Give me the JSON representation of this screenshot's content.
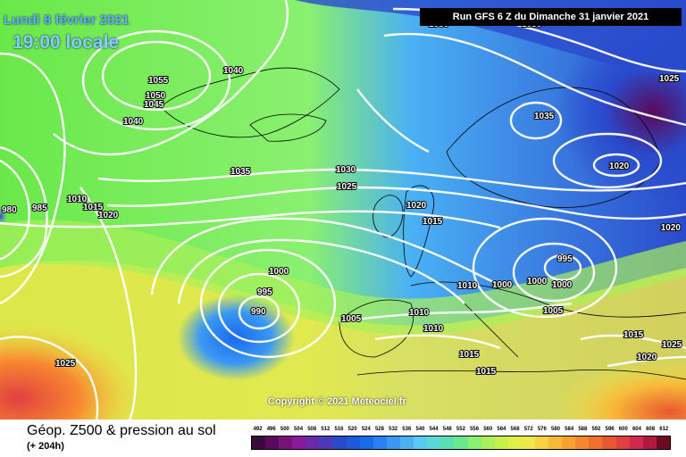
{
  "map": {
    "date_label": "Lundi 8 février 2021",
    "time_label": "19:00 locale",
    "run_label": "Run GFS 6 Z du Dimanche 31 janvier 2021",
    "copyright": "Copyright © 2021 Meteociel.fr",
    "title": "Géop. Z500 & pression au sol",
    "subtitle": "(+ 204h)",
    "isobar_labels": [
      {
        "text": "1055"
      },
      {
        "text": "1050"
      },
      {
        "text": "1045"
      },
      {
        "text": "1040"
      },
      {
        "text": "1040"
      },
      {
        "text": "1035"
      },
      {
        "text": "1030"
      },
      {
        "text": "1025"
      },
      {
        "text": "1020"
      },
      {
        "text": "1015"
      },
      {
        "text": "1035"
      },
      {
        "text": "1020"
      },
      {
        "text": "1025"
      },
      {
        "text": "1020"
      },
      {
        "text": "995"
      },
      {
        "text": "1000"
      },
      {
        "text": "1000"
      },
      {
        "text": "1000"
      },
      {
        "text": "1005"
      },
      {
        "text": "1010"
      },
      {
        "text": "1000"
      },
      {
        "text": "995"
      },
      {
        "text": "990"
      },
      {
        "text": "1005"
      },
      {
        "text": "1010"
      },
      {
        "text": "1010"
      },
      {
        "text": "1015"
      },
      {
        "text": "1015"
      },
      {
        "text": "1015"
      },
      {
        "text": "1020"
      },
      {
        "text": "1025"
      },
      {
        "text": "1025"
      },
      {
        "text": "980"
      },
      {
        "text": "985"
      },
      {
        "text": "1010"
      },
      {
        "text": "1015"
      },
      {
        "text": "1020"
      },
      {
        "text": "1030"
      },
      {
        "text": "1030"
      }
    ],
    "legend_values": [
      "492",
      "496",
      "500",
      "504",
      "508",
      "512",
      "516",
      "520",
      "524",
      "528",
      "532",
      "536",
      "540",
      "544",
      "548",
      "552",
      "556",
      "560",
      "564",
      "568",
      "572",
      "576",
      "580",
      "584",
      "588",
      "592",
      "596",
      "600",
      "604",
      "608",
      "612"
    ],
    "legend_colors": [
      "#3a0a3a",
      "#5a0a5a",
      "#7a107a",
      "#8a1a9a",
      "#6a2aaa",
      "#4a3abb",
      "#2a4acc",
      "#1a5add",
      "#1a6aee",
      "#2a80f0",
      "#3a98f2",
      "#4ab0f4",
      "#5ac8f2",
      "#5ad8d8",
      "#5ae0b0",
      "#6ae890",
      "#8af070",
      "#aaf05a",
      "#c8f04a",
      "#e0f04a",
      "#f0e84a",
      "#f8d040",
      "#f8b838",
      "#f8a030",
      "#f88830",
      "#f07030",
      "#e85830",
      "#e04040",
      "#d02a50",
      "#b01a40",
      "#700a20"
    ]
  }
}
